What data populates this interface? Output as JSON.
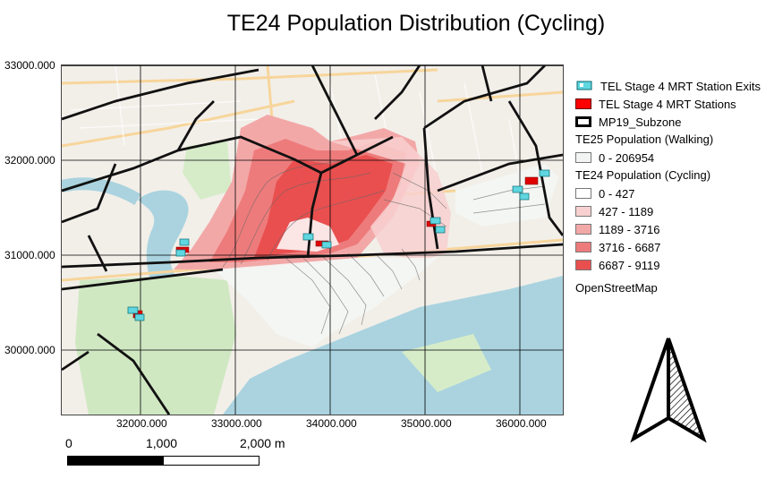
{
  "title": "TE24 Population Distribution (Cycling)",
  "axes": {
    "y_ticks": [
      "33000.000",
      "32000.000",
      "31000.000",
      "30000.000"
    ],
    "x_ticks": [
      "32000.000",
      "33000.000",
      "34000.000",
      "35000.000",
      "36000.000"
    ]
  },
  "legend": {
    "items": [
      {
        "label": "TEL Stage 4 MRT Station Exits",
        "icon": "station-exit-icon"
      },
      {
        "label": "TEL Stage 4 MRT Stations",
        "color": "#ff0000"
      },
      {
        "label": "MP19_Subzone",
        "color": "#000000"
      }
    ],
    "walking_title": "TE25 Population (Walking)",
    "walking_classes": [
      {
        "label": "0 - 206954",
        "color": "#f2f4f4"
      }
    ],
    "cycling_title": "TE24 Population (Cycling)",
    "cycling_classes": [
      {
        "label": "0 - 427",
        "color": "#ffffff"
      },
      {
        "label": "427 - 1189",
        "color": "#f8d0d0"
      },
      {
        "label": "1189 - 3716",
        "color": "#f3a8a8"
      },
      {
        "label": "3716 - 6687",
        "color": "#ee7b7b"
      },
      {
        "label": "6687 - 9119",
        "color": "#e94f4f"
      }
    ],
    "basemap": "OpenStreetMap"
  },
  "scale_bar": {
    "labels": [
      "0",
      "1,000",
      "2,000 m"
    ]
  },
  "colors": {
    "sea": "#aad3df",
    "park": "#cfe8c2",
    "land": "#f2efe9",
    "road": "#f7d59b"
  }
}
